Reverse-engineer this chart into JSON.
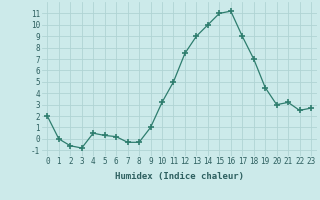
{
  "x": [
    0,
    1,
    2,
    3,
    4,
    5,
    6,
    7,
    8,
    9,
    10,
    11,
    12,
    13,
    14,
    15,
    16,
    17,
    18,
    19,
    20,
    21,
    22,
    23
  ],
  "y": [
    2,
    0,
    -0.6,
    -0.8,
    0.5,
    0.3,
    0.2,
    -0.3,
    -0.3,
    1.0,
    3.2,
    5.0,
    7.5,
    9.0,
    10.0,
    11.0,
    11.2,
    9.0,
    7.0,
    4.5,
    3.0,
    3.2,
    2.5,
    2.7
  ],
  "line_color": "#2e7d6e",
  "marker": "+",
  "marker_size": 4,
  "bg_color": "#cceaea",
  "grid_color": "#b0d4d4",
  "xlabel": "Humidex (Indice chaleur)",
  "xlim": [
    -0.5,
    23.5
  ],
  "ylim": [
    -1.5,
    12.0
  ],
  "xticks": [
    0,
    1,
    2,
    3,
    4,
    5,
    6,
    7,
    8,
    9,
    10,
    11,
    12,
    13,
    14,
    15,
    16,
    17,
    18,
    19,
    20,
    21,
    22,
    23
  ],
  "yticks": [
    -1,
    0,
    1,
    2,
    3,
    4,
    5,
    6,
    7,
    8,
    9,
    10,
    11
  ],
  "xtick_labels": [
    "0",
    "1",
    "2",
    "3",
    "4",
    "5",
    "6",
    "7",
    "8",
    "9",
    "10",
    "11",
    "12",
    "13",
    "14",
    "15",
    "16",
    "17",
    "18",
    "19",
    "20",
    "21",
    "22",
    "23"
  ],
  "ytick_labels": [
    "-1",
    "0",
    "1",
    "2",
    "3",
    "4",
    "5",
    "6",
    "7",
    "8",
    "9",
    "10",
    "11"
  ],
  "tick_fontsize": 5.5,
  "xlabel_fontsize": 6.5,
  "label_color": "#2e6060"
}
